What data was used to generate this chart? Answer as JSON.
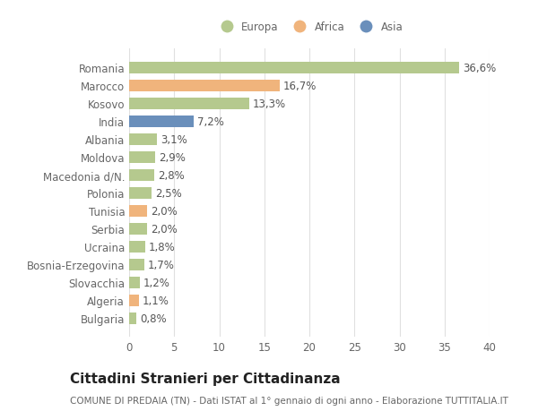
{
  "countries": [
    "Romania",
    "Marocco",
    "Kosovo",
    "India",
    "Albania",
    "Moldova",
    "Macedonia d/N.",
    "Polonia",
    "Tunisia",
    "Serbia",
    "Ucraina",
    "Bosnia-Erzegovina",
    "Slovacchia",
    "Algeria",
    "Bulgaria"
  ],
  "values": [
    36.6,
    16.7,
    13.3,
    7.2,
    3.1,
    2.9,
    2.8,
    2.5,
    2.0,
    2.0,
    1.8,
    1.7,
    1.2,
    1.1,
    0.8
  ],
  "labels": [
    "36,6%",
    "16,7%",
    "13,3%",
    "7,2%",
    "3,1%",
    "2,9%",
    "2,8%",
    "2,5%",
    "2,0%",
    "2,0%",
    "1,8%",
    "1,7%",
    "1,2%",
    "1,1%",
    "0,8%"
  ],
  "colors": [
    "#b5c98e",
    "#f0b47c",
    "#b5c98e",
    "#6a8fbb",
    "#b5c98e",
    "#b5c98e",
    "#b5c98e",
    "#b5c98e",
    "#f0b47c",
    "#b5c98e",
    "#b5c98e",
    "#b5c98e",
    "#b5c98e",
    "#f0b47c",
    "#b5c98e"
  ],
  "legend_labels": [
    "Europa",
    "Africa",
    "Asia"
  ],
  "legend_colors": [
    "#b5c98e",
    "#f0b47c",
    "#6a8fbb"
  ],
  "xlim": [
    0,
    40
  ],
  "xticks": [
    0,
    5,
    10,
    15,
    20,
    25,
    30,
    35,
    40
  ],
  "title": "Cittadini Stranieri per Cittadinanza",
  "subtitle": "COMUNE DI PREDAIA (TN) - Dati ISTAT al 1° gennaio di ogni anno - Elaborazione TUTTITALIA.IT",
  "bg_color": "#ffffff",
  "grid_color": "#e0e0e0",
  "bar_height": 0.65,
  "label_fontsize": 8.5,
  "tick_fontsize": 8.5,
  "title_fontsize": 11,
  "subtitle_fontsize": 7.5
}
